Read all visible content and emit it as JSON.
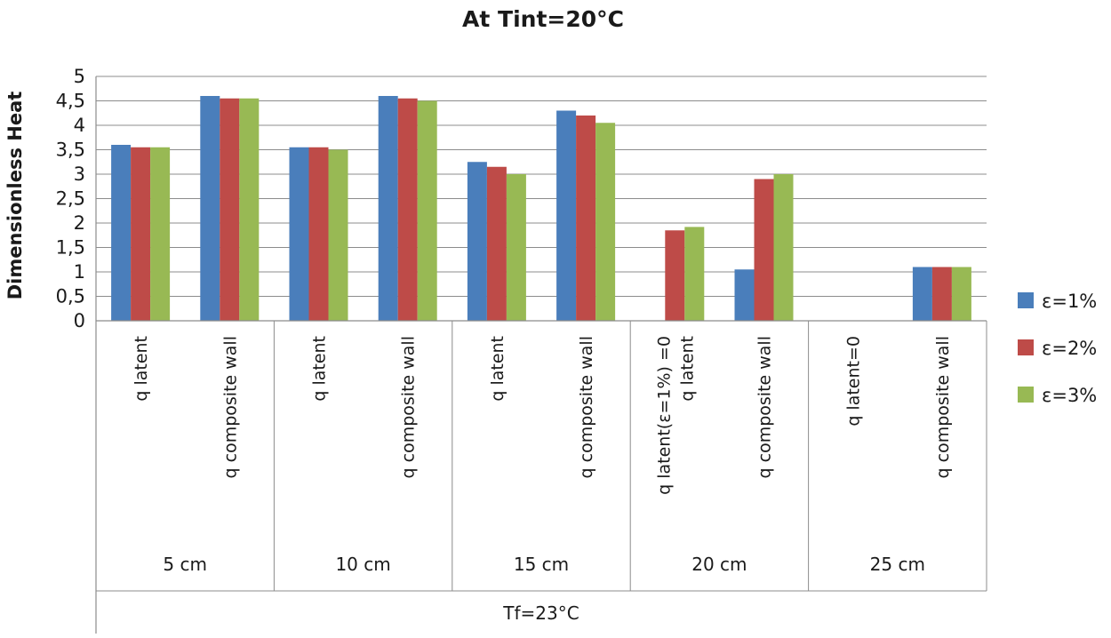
{
  "chart_data": {
    "type": "bar",
    "title": "At Tint=20°C",
    "xlabel": "",
    "ylabel": "Dimensionless Heat",
    "ylim": [
      0,
      5
    ],
    "yticks": [
      "0",
      "0,5",
      "1",
      "1,5",
      "2",
      "2,5",
      "3",
      "3,5",
      "4",
      "4,5",
      "5"
    ],
    "grid": true,
    "legend_position": "right",
    "outer_label": "Tf=23°C",
    "groups": [
      "5 cm",
      "10 cm",
      "15 cm",
      "20 cm",
      "25 cm"
    ],
    "categories": [
      {
        "group": "5 cm",
        "lines": [
          "q latent"
        ]
      },
      {
        "group": "5 cm",
        "lines": [
          "q composite  wall"
        ]
      },
      {
        "group": "10 cm",
        "lines": [
          "q latent"
        ]
      },
      {
        "group": "10 cm",
        "lines": [
          "q composite  wall"
        ]
      },
      {
        "group": "15 cm",
        "lines": [
          "q latent"
        ]
      },
      {
        "group": "15 cm",
        "lines": [
          "q composite  wall"
        ]
      },
      {
        "group": "20 cm",
        "lines": [
          "q latent(ε=1%) =0",
          "q latent"
        ]
      },
      {
        "group": "20 cm",
        "lines": [
          "q composite  wall"
        ]
      },
      {
        "group": "25 cm",
        "lines": [
          "q latent=0"
        ]
      },
      {
        "group": "25 cm",
        "lines": [
          "q composite  wall"
        ]
      }
    ],
    "series": [
      {
        "name": "ε=1%",
        "color": "#4a7ebb",
        "values": [
          3.6,
          4.6,
          3.55,
          4.6,
          3.25,
          4.3,
          0,
          1.05,
          0,
          1.1
        ]
      },
      {
        "name": "ε=2%",
        "color": "#be4b48",
        "values": [
          3.55,
          4.55,
          3.55,
          4.55,
          3.15,
          4.2,
          1.85,
          2.9,
          0,
          1.1
        ]
      },
      {
        "name": "ε=3%",
        "color": "#98b954",
        "values": [
          3.55,
          4.55,
          3.5,
          4.5,
          3.0,
          4.05,
          1.92,
          3.0,
          0,
          1.1
        ]
      }
    ]
  }
}
